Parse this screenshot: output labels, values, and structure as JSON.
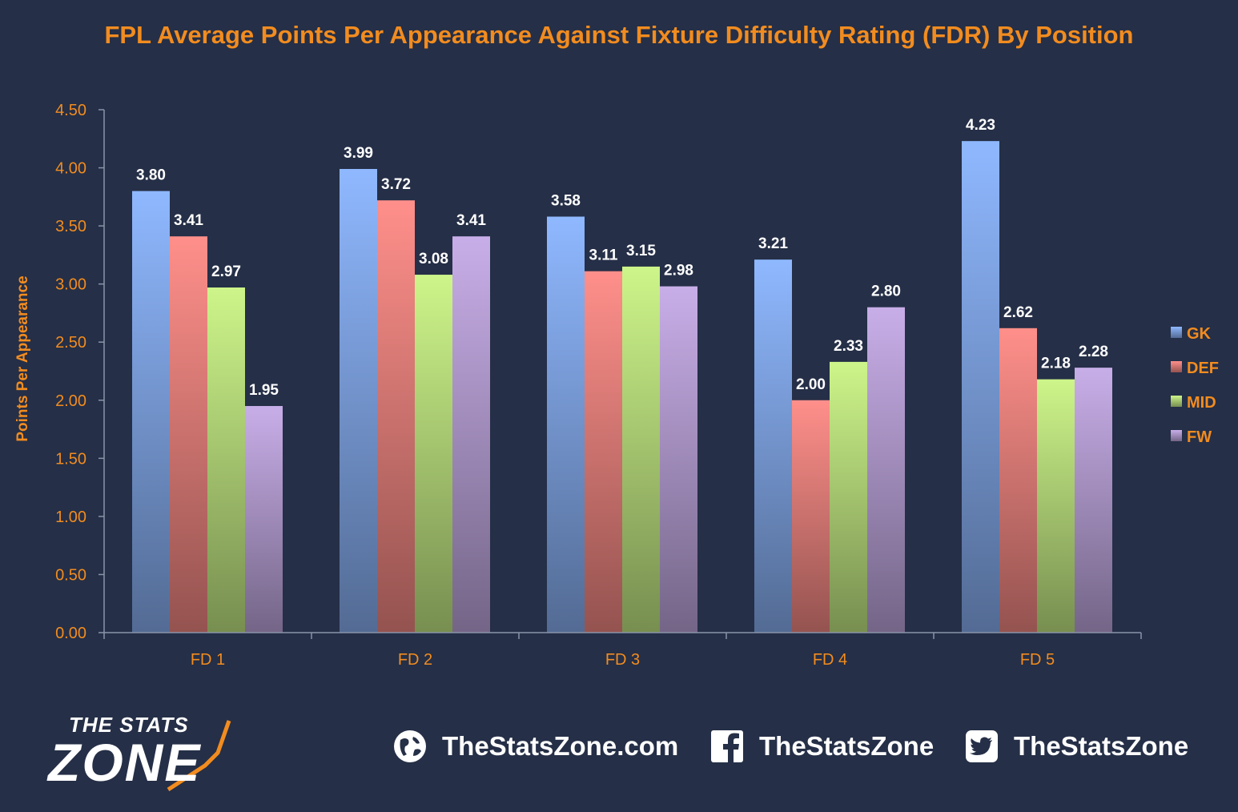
{
  "chart_data": {
    "type": "bar",
    "title": "FPL Average Points Per Appearance Against Fixture Difficulty Rating (FDR) By Position",
    "xlabel": "",
    "ylabel": "Points Per Appearance",
    "ylim": [
      0,
      4.5
    ],
    "yticks": [
      "0.00",
      "0.50",
      "1.00",
      "1.50",
      "2.00",
      "2.50",
      "3.00",
      "3.50",
      "4.00",
      "4.50"
    ],
    "categories": [
      "FD 1",
      "FD 2",
      "FD 3",
      "FD 4",
      "FD 5"
    ],
    "series": [
      {
        "name": "GK",
        "values": [
          3.8,
          3.99,
          3.58,
          3.21,
          4.23
        ],
        "color": "#8fb8ff"
      },
      {
        "name": "DEF",
        "values": [
          3.41,
          3.72,
          3.11,
          2.0,
          2.62
        ],
        "color": "#ff8f8a"
      },
      {
        "name": "MID",
        "values": [
          2.97,
          3.08,
          3.15,
          2.33,
          2.18
        ],
        "color": "#cdf58a"
      },
      {
        "name": "FW",
        "values": [
          1.95,
          3.41,
          2.98,
          2.8,
          2.28
        ],
        "color": "#c8aee8"
      }
    ],
    "legend_position": "right",
    "grid": false,
    "data_labels": true
  },
  "colors": {
    "background": "#252f47",
    "title": "#f28c1f",
    "axis_text": "#f28c1f",
    "data_label": "#ffffff",
    "axis_line": "#8a93a8"
  },
  "footer": {
    "logo_top": "THE STATS",
    "logo_bottom": "ZONE",
    "website": "TheStatsZone.com",
    "facebook": "TheStatsZone",
    "twitter": "TheStatsZone",
    "icons": [
      "globe-icon",
      "facebook-icon",
      "twitter-icon"
    ]
  }
}
